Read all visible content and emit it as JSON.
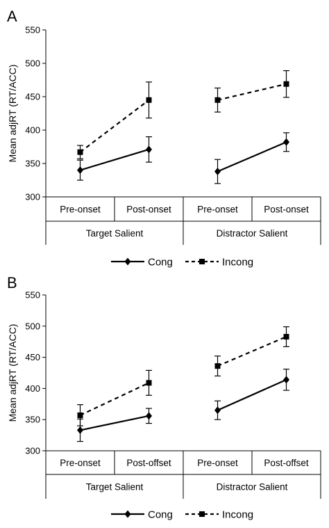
{
  "chart_data": [
    {
      "type": "line",
      "panel_label": "A",
      "ylabel": "Mean adjRT (RT/ACC)",
      "ylim": [
        300,
        550
      ],
      "yticks": [
        300,
        350,
        400,
        450,
        500,
        550
      ],
      "groups": [
        {
          "label": "Target Salient",
          "categories": [
            "Pre-onset",
            "Post-onset"
          ]
        },
        {
          "label": "Distractor Salient",
          "categories": [
            "Pre-onset",
            "Post-onset"
          ]
        }
      ],
      "series": [
        {
          "name": "Cong",
          "style": "solid",
          "marker": "diamond",
          "values": [
            [
              340,
              371
            ],
            [
              338,
              382
            ]
          ],
          "errors": [
            [
              15,
              19
            ],
            [
              18,
              14
            ]
          ]
        },
        {
          "name": "Incong",
          "style": "dashed",
          "marker": "square",
          "values": [
            [
              367,
              445
            ],
            [
              445,
              469
            ]
          ],
          "errors": [
            [
              10,
              27
            ],
            [
              18,
              20
            ]
          ]
        }
      ],
      "legend": "bottom-center",
      "grid": false
    },
    {
      "type": "line",
      "panel_label": "B",
      "ylabel": "Mean adjRT (RT/ACC)",
      "ylim": [
        300,
        550
      ],
      "yticks": [
        300,
        350,
        400,
        450,
        500,
        550
      ],
      "groups": [
        {
          "label": "Target Salient",
          "categories": [
            "Pre-onset",
            "Post-offset"
          ]
        },
        {
          "label": "Distractor Salient",
          "categories": [
            "Pre-onset",
            "Post-offset"
          ]
        }
      ],
      "series": [
        {
          "name": "Cong",
          "style": "solid",
          "marker": "diamond",
          "values": [
            [
              333,
              356
            ],
            [
              365,
              414
            ]
          ],
          "errors": [
            [
              18,
              12
            ],
            [
              15,
              17
            ]
          ]
        },
        {
          "name": "Incong",
          "style": "dashed",
          "marker": "square",
          "values": [
            [
              357,
              409
            ],
            [
              436,
              483
            ]
          ],
          "errors": [
            [
              17,
              20
            ],
            [
              16,
              16
            ]
          ]
        }
      ],
      "legend": "bottom-center",
      "grid": false
    }
  ]
}
